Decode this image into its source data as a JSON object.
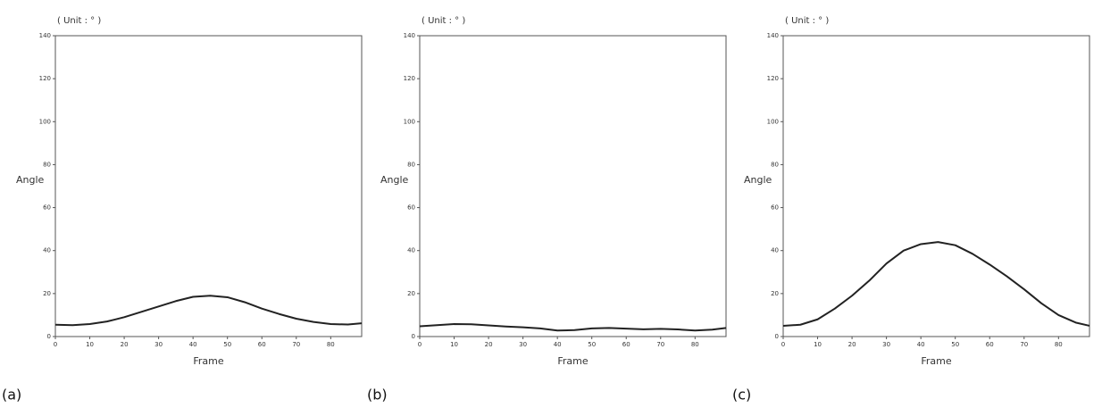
{
  "chart_data": [
    {
      "type": "line",
      "panel_label": "(a)",
      "title": "( Unit : ° )",
      "ylabel": "Angle",
      "xlabel": "Frame",
      "color": "#222222",
      "x": [
        0,
        5,
        10,
        15,
        20,
        25,
        30,
        35,
        40,
        45,
        50,
        55,
        60,
        65,
        70,
        75,
        80,
        85,
        89
      ],
      "values": [
        5.5,
        5.3,
        5.8,
        7,
        9,
        11.5,
        14,
        16.5,
        18.5,
        19,
        18.3,
        16,
        13,
        10.5,
        8.3,
        6.8,
        5.8,
        5.6,
        6.2
      ],
      "xlim": [
        0,
        89
      ],
      "xticks": [
        0,
        10,
        20,
        30,
        40,
        50,
        60,
        70,
        80
      ],
      "ylim": [
        0,
        140
      ],
      "yticks": [
        0,
        20,
        40,
        60,
        80,
        100,
        120,
        140
      ],
      "grid": false
    },
    {
      "type": "line",
      "panel_label": "(b)",
      "title": "( Unit : ° )",
      "ylabel": "Angle",
      "xlabel": "Frame",
      "color": "#222222",
      "x": [
        0,
        5,
        10,
        15,
        20,
        25,
        30,
        35,
        40,
        45,
        50,
        55,
        60,
        65,
        70,
        75,
        80,
        85,
        89
      ],
      "values": [
        4.8,
        5.3,
        5.8,
        5.7,
        5.2,
        4.7,
        4.3,
        3.8,
        2.8,
        3,
        3.8,
        4,
        3.7,
        3.4,
        3.6,
        3.3,
        2.8,
        3.2,
        4
      ],
      "xlim": [
        0,
        89
      ],
      "xticks": [
        0,
        10,
        20,
        30,
        40,
        50,
        60,
        70,
        80
      ],
      "ylim": [
        0,
        140
      ],
      "yticks": [
        0,
        20,
        40,
        60,
        80,
        100,
        120,
        140
      ],
      "grid": false
    },
    {
      "type": "line",
      "panel_label": "(c)",
      "title": "( Unit : ° )",
      "ylabel": "Angle",
      "xlabel": "Frame",
      "color": "#222222",
      "x": [
        0,
        5,
        10,
        15,
        20,
        25,
        30,
        35,
        40,
        45,
        50,
        55,
        60,
        65,
        70,
        75,
        80,
        85,
        89
      ],
      "values": [
        5,
        5.5,
        8,
        13,
        19,
        26,
        34,
        40,
        43,
        44,
        42.5,
        38.5,
        33.5,
        28,
        22,
        15.5,
        10,
        6.5,
        5
      ],
      "xlim": [
        0,
        89
      ],
      "xticks": [
        0,
        10,
        20,
        30,
        40,
        50,
        60,
        70,
        80
      ],
      "ylim": [
        0,
        140
      ],
      "yticks": [
        0,
        20,
        40,
        60,
        80,
        100,
        120,
        140
      ],
      "grid": false
    }
  ]
}
